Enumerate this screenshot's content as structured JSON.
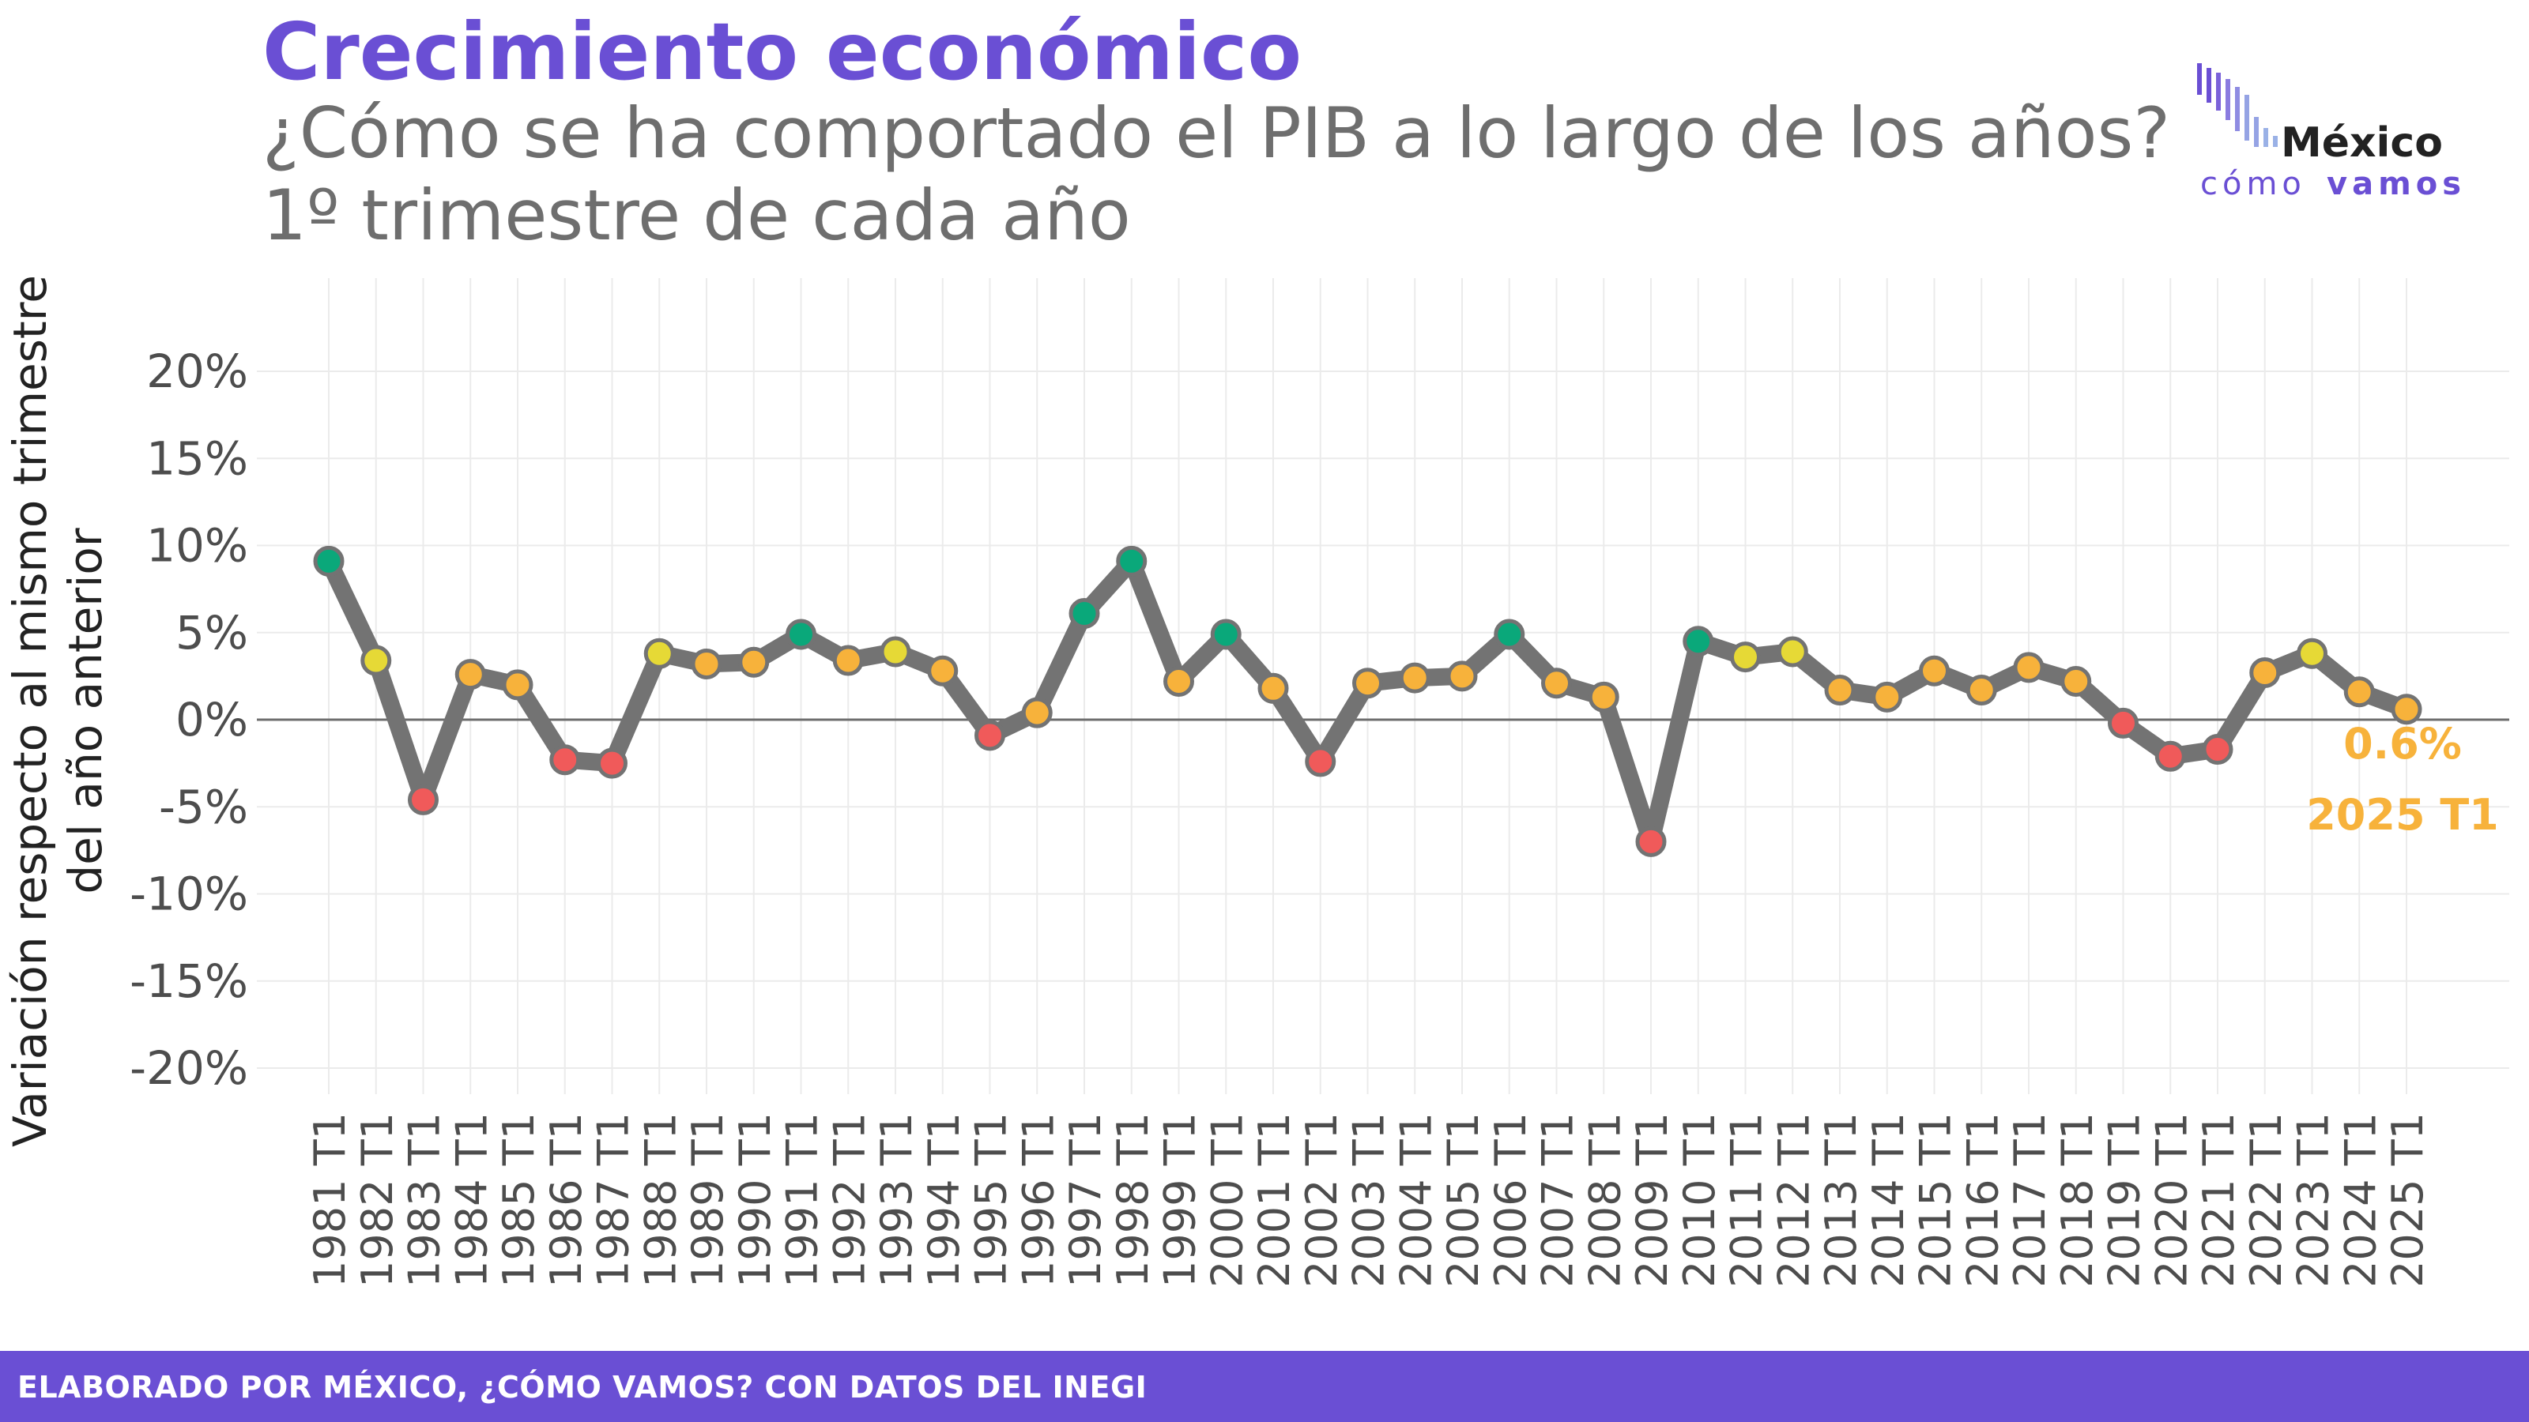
{
  "header": {
    "title": "Crecimiento económico",
    "subtitle": "¿Cómo se ha comportado el PIB a lo largo de los años?",
    "subtitle2": "1º trimestre de cada año"
  },
  "logo": {
    "line1": "México",
    "line2a": "cómo",
    "line2b": "vamos"
  },
  "footer": {
    "text": "ELABORADO POR MÉXICO, ¿CÓMO VAMOS? CON DATOS DEL INEGI"
  },
  "colors": {
    "line": "#737373",
    "green": "#0aa87a",
    "yellow": "#e6d936",
    "orange": "#f7b23b",
    "red": "#f05a5a",
    "accent": "#6a4fd4"
  },
  "chart_data": {
    "type": "line",
    "title": "Crecimiento económico",
    "ylabel": "Variación respecto al mismo trimestre del año anterior",
    "ylabel_lines": [
      "Variación respecto al mismo trimestre",
      "del año anterior"
    ],
    "xlabel": "",
    "ylim": [
      -20,
      20
    ],
    "yticks": [
      20,
      15,
      10,
      5,
      0,
      -5,
      -10,
      -15,
      -20
    ],
    "ytick_labels": [
      "20%",
      "15%",
      "10%",
      "5%",
      "0%",
      "-5%",
      "-10%",
      "-15%",
      "-20%"
    ],
    "grid": true,
    "categories": [
      "1981 T1",
      "1982 T1",
      "1983 T1",
      "1984 T1",
      "1985 T1",
      "1986 T1",
      "1987 T1",
      "1988 T1",
      "1989 T1",
      "1990 T1",
      "1991 T1",
      "1992 T1",
      "1993 T1",
      "1994 T1",
      "1995 T1",
      "1996 T1",
      "1997 T1",
      "1998 T1",
      "1999 T1",
      "2000 T1",
      "2001 T1",
      "2002 T1",
      "2003 T1",
      "2004 T1",
      "2005 T1",
      "2006 T1",
      "2007 T1",
      "2008 T1",
      "2009 T1",
      "2010 T1",
      "2011 T1",
      "2012 T1",
      "2013 T1",
      "2014 T1",
      "2015 T1",
      "2016 T1",
      "2017 T1",
      "2018 T1",
      "2019 T1",
      "2020 T1",
      "2021 T1",
      "2022 T1",
      "2023 T1",
      "2024 T1",
      "2025 T1"
    ],
    "values": [
      9.1,
      3.4,
      -4.6,
      2.6,
      2.0,
      -2.3,
      -2.5,
      3.8,
      3.2,
      3.3,
      4.9,
      3.4,
      3.9,
      2.8,
      -0.9,
      0.4,
      6.1,
      9.1,
      2.2,
      4.9,
      1.8,
      -2.4,
      2.1,
      2.4,
      2.5,
      4.9,
      2.1,
      1.3,
      -7.0,
      4.5,
      3.6,
      3.9,
      1.7,
      1.3,
      2.8,
      1.7,
      3.0,
      2.2,
      -0.2,
      -2.1,
      -1.7,
      2.7,
      3.8,
      1.6,
      0.6
    ],
    "point_colors": [
      "green",
      "yellow",
      "red",
      "orange",
      "orange",
      "red",
      "red",
      "yellow",
      "orange",
      "orange",
      "green",
      "orange",
      "yellow",
      "orange",
      "red",
      "orange",
      "green",
      "green",
      "orange",
      "green",
      "orange",
      "red",
      "orange",
      "orange",
      "orange",
      "green",
      "orange",
      "orange",
      "red",
      "green",
      "yellow",
      "yellow",
      "orange",
      "orange",
      "orange",
      "orange",
      "orange",
      "orange",
      "red",
      "red",
      "red",
      "orange",
      "yellow",
      "orange",
      "orange"
    ],
    "annotation": {
      "value_label": "0.6%",
      "period_label": "2025 T1"
    }
  }
}
